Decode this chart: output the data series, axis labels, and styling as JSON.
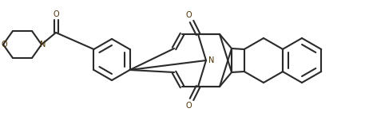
{
  "background_color": "#ffffff",
  "line_color": "#2a2a2a",
  "n_color": "#4a3000",
  "o_color": "#4a3000",
  "linewidth": 1.5,
  "figsize": [
    4.57,
    1.51
  ],
  "dpi": 100,
  "xlim": [
    0,
    457
  ],
  "ylim": [
    0,
    151
  ]
}
